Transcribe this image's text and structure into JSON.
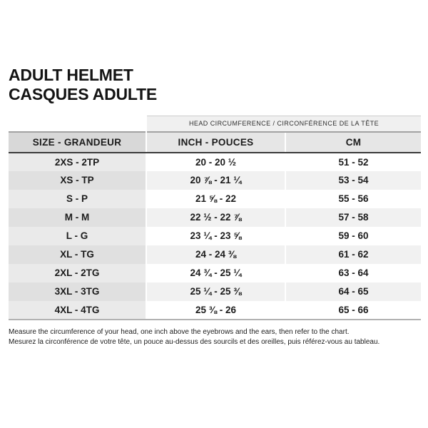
{
  "page": {
    "title_line1": "ADULT HELMET",
    "title_line2": "CASQUES ADULTE"
  },
  "table": {
    "group_header": "HEAD CIRCUMFERENCE / CIRCONFÉRENCE DE LA TÊTE",
    "columns": {
      "size": "SIZE - GRANDEUR",
      "inch": "INCH - POUCES",
      "cm": "CM"
    },
    "rows": [
      {
        "size": "2XS - 2TP",
        "inch": "20 - 20 ½",
        "cm": "51 - 52"
      },
      {
        "size": "XS - TP",
        "inch": "20 ⅞ - 21 ¼",
        "cm": "53 - 54"
      },
      {
        "size": "S - P",
        "inch": "21 ⅝ - 22",
        "cm": "55 - 56"
      },
      {
        "size": "M - M",
        "inch": "22 ½ - 22 ⅞",
        "cm": "57 - 58"
      },
      {
        "size": "L - G",
        "inch": "23 ¼ - 23 ⅝",
        "cm": "59 - 60"
      },
      {
        "size": "XL - TG",
        "inch": "24 - 24 ⅜",
        "cm": "61 - 62"
      },
      {
        "size": "2XL - 2TG",
        "inch": "24 ¾ - 25 ¼",
        "cm": "63 - 64"
      },
      {
        "size": "3XL - 3TG",
        "inch": "25 ¼ - 25 ⅜",
        "cm": "64 - 65"
      },
      {
        "size": "4XL - 4TG",
        "inch": "25 ⅜ - 26",
        "cm": "65 - 66"
      }
    ]
  },
  "footer": {
    "note_en": "Measure the circumference of your head, one inch above the eyebrows and the ears, then refer to the chart.",
    "note_fr": "Mesurez la circonférence de votre tête, un pouce au-dessus des sourcils et des oreilles, puis référez-vous au tableau."
  },
  "colors": {
    "text": "#1b1b1b",
    "group_header_bg": "#f0f0f0",
    "header_bg_size": "#d8d8d8",
    "header_bg_measure": "#e6e6e6",
    "row_stripe_light": "#f1f1f1",
    "size_column_stripe": "#e0e0e0",
    "header_underline": "#3b3b3b"
  }
}
